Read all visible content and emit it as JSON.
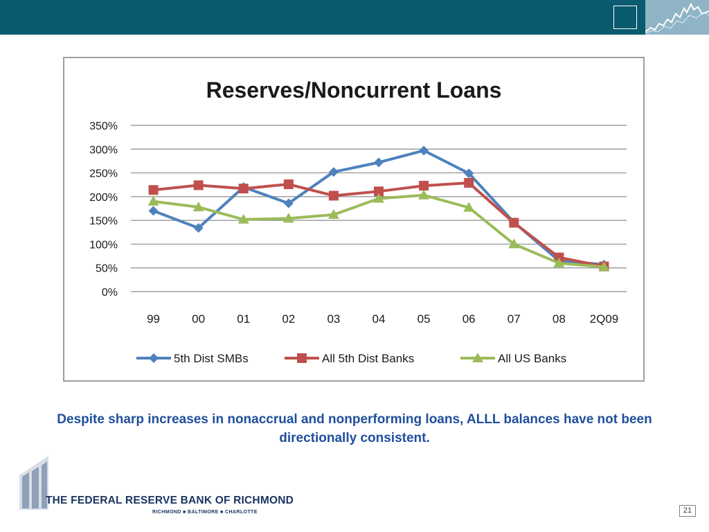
{
  "header": {
    "brand_color": "#0a5a70"
  },
  "chart_data": {
    "type": "line",
    "title": "Reserves/Noncurrent Loans",
    "categories": [
      "99",
      "00",
      "01",
      "02",
      "03",
      "04",
      "05",
      "06",
      "07",
      "08",
      "2Q09"
    ],
    "ylim": [
      0,
      350
    ],
    "yticks": [
      "350%",
      "300%",
      "250%",
      "200%",
      "150%",
      "100%",
      "50%",
      "0%"
    ],
    "ytick_values": [
      350,
      300,
      250,
      200,
      150,
      100,
      50,
      0
    ],
    "grid": true,
    "legend_position": "bottom",
    "series": [
      {
        "name": "5th Dist SMBs",
        "color": "#4f81bd",
        "marker": "diamond",
        "values": [
          170,
          134,
          220,
          186,
          252,
          272,
          297,
          249,
          146,
          65,
          57
        ]
      },
      {
        "name": "All 5th Dist Banks",
        "color": "#c0504d",
        "marker": "square",
        "values": [
          214,
          224,
          217,
          226,
          202,
          211,
          223,
          229,
          145,
          72,
          53
        ]
      },
      {
        "name": "All US Banks",
        "color": "#9bbb59",
        "marker": "triangle",
        "values": [
          190,
          178,
          152,
          154,
          162,
          196,
          203,
          177,
          100,
          60,
          52
        ]
      }
    ]
  },
  "caption": "Despite sharp increases in nonaccrual and nonperforming loans, ALLL balances have not been directionally consistent.",
  "logo": {
    "name": "THE FEDERAL RESERVE BANK OF RICHMOND",
    "cities": "RICHMOND ■ BALTIMORE ■ CHARLOTTE"
  },
  "page_number": "21"
}
